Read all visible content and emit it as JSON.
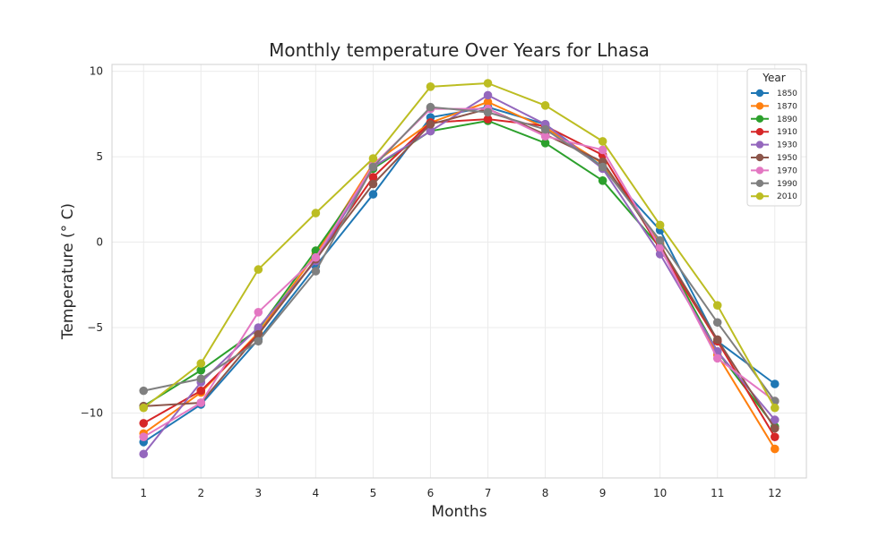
{
  "chart_data": {
    "type": "line",
    "title": "Monthly temperature Over Years for Lhasa",
    "xlabel": "Months",
    "ylabel": "Temperature (° C)",
    "x": [
      1,
      2,
      3,
      4,
      5,
      6,
      7,
      8,
      9,
      10,
      11,
      12
    ],
    "ylim": [
      -13.8,
      10.4
    ],
    "yticks": [
      10,
      5,
      0,
      -5,
      -10
    ],
    "ytick_labels": [
      "10",
      "5",
      "0",
      "−5",
      "−10"
    ],
    "grid": true,
    "legend_title": "Year",
    "legend_position": "top-right",
    "series": [
      {
        "name": "1850",
        "color": "#1f77b4",
        "values": [
          -11.7,
          -9.5,
          -5.7,
          -1.4,
          2.8,
          7.3,
          7.9,
          6.9,
          4.4,
          0.7,
          -5.8,
          -8.3
        ]
      },
      {
        "name": "1870",
        "color": "#ff7f0e",
        "values": [
          -11.2,
          -8.8,
          -5.3,
          -0.7,
          4.6,
          7.0,
          8.2,
          6.7,
          4.6,
          -0.1,
          -6.6,
          -12.1
        ]
      },
      {
        "name": "1890",
        "color": "#2ca02c",
        "values": [
          -9.6,
          -7.5,
          -5.1,
          -0.5,
          4.3,
          6.5,
          7.1,
          5.8,
          3.6,
          -0.3,
          -6.4,
          -10.8
        ]
      },
      {
        "name": "1910",
        "color": "#d62728",
        "values": [
          -10.6,
          -8.7,
          -5.4,
          -1.0,
          3.8,
          7.0,
          7.2,
          6.8,
          5.1,
          -0.4,
          -5.8,
          -11.4
        ]
      },
      {
        "name": "1930",
        "color": "#9467bd",
        "values": [
          -12.4,
          -8.2,
          -5.0,
          -1.1,
          4.4,
          6.5,
          8.6,
          6.9,
          4.3,
          -0.7,
          -6.4,
          -10.4
        ]
      },
      {
        "name": "1950",
        "color": "#8c564b",
        "values": [
          -9.6,
          -9.4,
          -5.4,
          -1.0,
          3.4,
          6.9,
          7.8,
          6.3,
          4.7,
          -0.2,
          -5.7,
          -10.9
        ]
      },
      {
        "name": "1970",
        "color": "#e377c2",
        "values": [
          -11.4,
          -9.4,
          -4.1,
          -0.9,
          4.5,
          7.8,
          7.8,
          6.2,
          5.4,
          -0.3,
          -6.8,
          -9.3
        ]
      },
      {
        "name": "1990",
        "color": "#7f7f7f",
        "values": [
          -8.7,
          -8.0,
          -5.8,
          -1.7,
          4.4,
          7.9,
          7.6,
          6.6,
          4.4,
          0.1,
          -4.7,
          -9.3
        ]
      },
      {
        "name": "2010",
        "color": "#bcbd22",
        "values": [
          -9.7,
          -7.1,
          -1.6,
          1.7,
          4.9,
          9.1,
          9.3,
          8.0,
          5.9,
          1.0,
          -3.7,
          -9.7
        ]
      }
    ]
  }
}
